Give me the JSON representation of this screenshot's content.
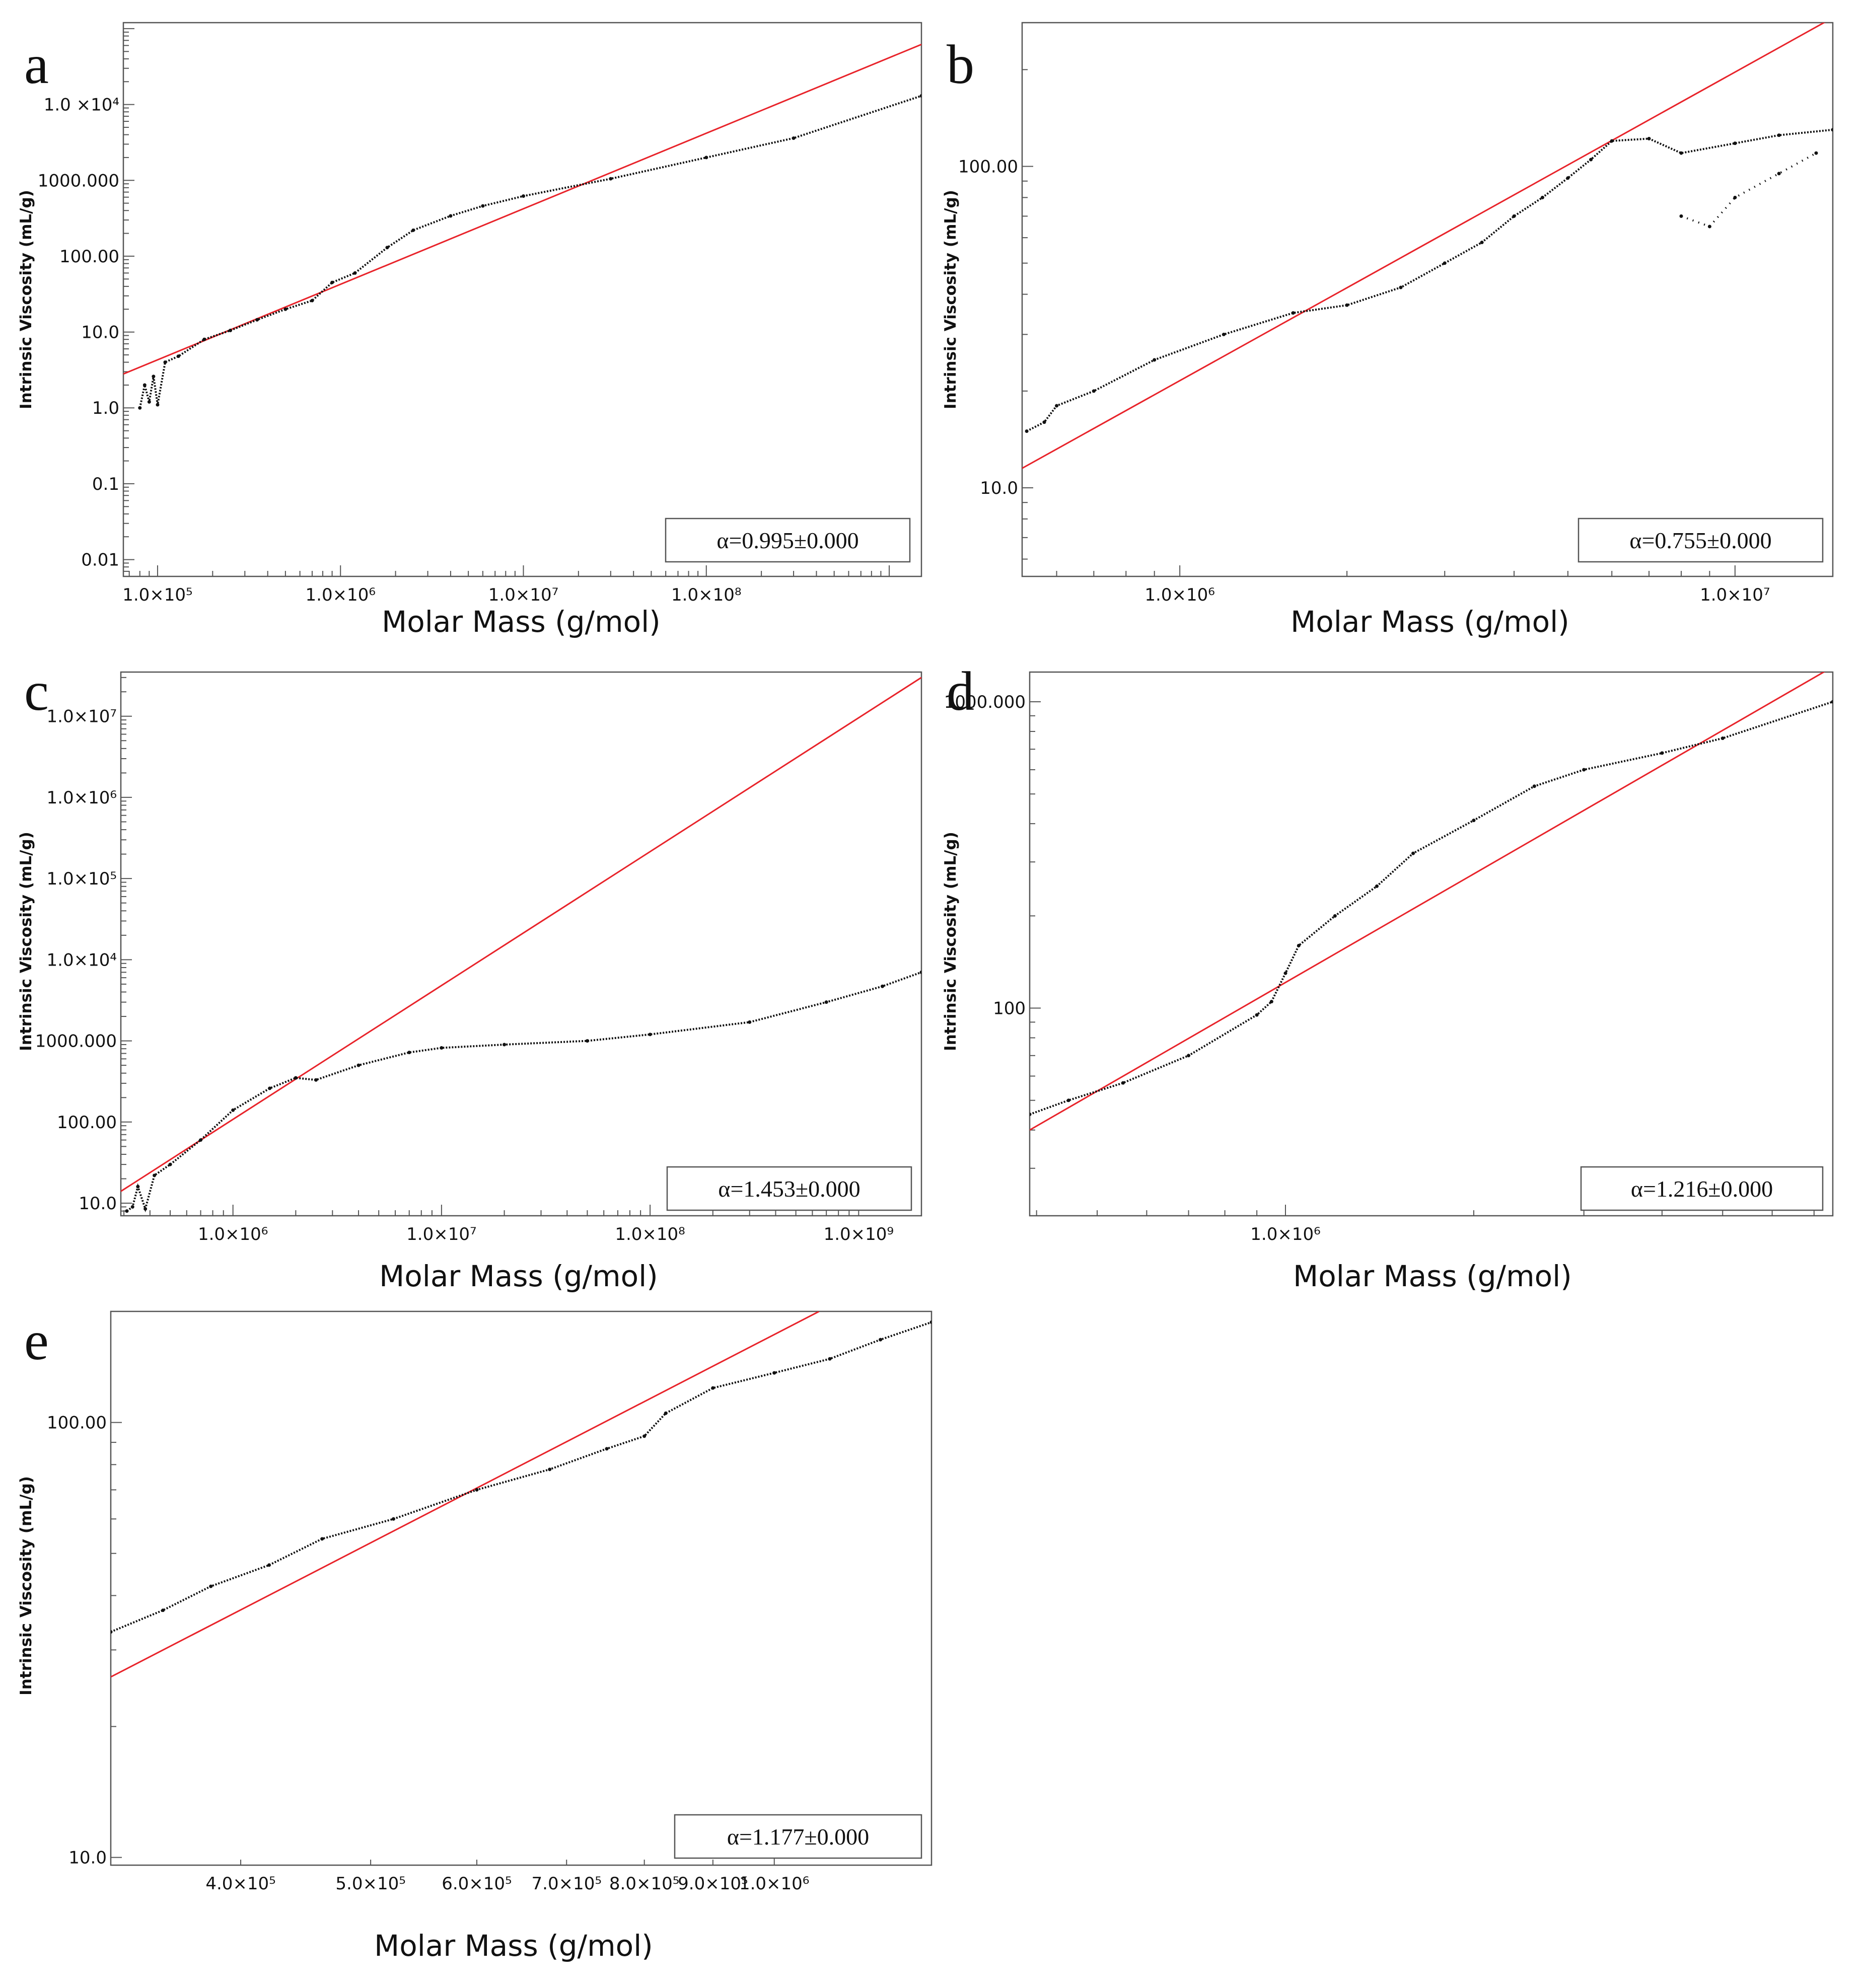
{
  "figure": {
    "xlabel": "Molar Mass (g/mol)",
    "ylabel": "Intrinsic Viscosity (mL/g)",
    "colors": {
      "fit_line": "#e8232a",
      "data": "#111111",
      "frame": "#555555",
      "background": "#ffffff"
    }
  },
  "chart_data": [
    {
      "panel": "a",
      "type": "scatter",
      "title": "",
      "xlabel": "Molar Mass (g/mol)",
      "ylabel": "Intrinsic Viscosity (mL/g)",
      "xscale": "log",
      "yscale": "log",
      "xlim": [
        65000,
        1500000000
      ],
      "ylim": [
        0.006,
        120000
      ],
      "xticks": [
        {
          "value": 100000,
          "label": "1.0×10⁵"
        },
        {
          "value": 1000000,
          "label": "1.0×10⁶"
        },
        {
          "value": 10000000,
          "label": "1.0×10⁷"
        },
        {
          "value": 100000000,
          "label": "1.0×10⁸"
        }
      ],
      "yticks": [
        {
          "value": 0.01,
          "label": "0.01"
        },
        {
          "value": 0.1,
          "label": "0.1"
        },
        {
          "value": 1,
          "label": "1.0"
        },
        {
          "value": 10,
          "label": "10.0"
        },
        {
          "value": 100,
          "label": "100.00"
        },
        {
          "value": 1000,
          "label": "1000.000"
        },
        {
          "value": 10000,
          "label": "1.0 ×10⁴"
        }
      ],
      "alpha_label": "α=0.995±0.000",
      "fit_line": {
        "x": [
          65000,
          1500000000
        ],
        "y": [
          2.8,
          62000
        ]
      },
      "series": [
        {
          "name": "data",
          "x": [
            80000,
            85000,
            90000,
            95000,
            100000,
            110000,
            130000,
            180000,
            250000,
            350000,
            500000,
            700000,
            900000,
            1200000,
            1800000,
            2500000,
            4000000,
            6000000,
            10000000,
            30000000,
            100000000,
            300000000,
            1500000000
          ],
          "y": [
            1.0,
            2.0,
            1.2,
            2.6,
            1.1,
            4.0,
            4.8,
            8.0,
            10.5,
            14.5,
            20,
            26,
            45,
            60,
            130,
            220,
            340,
            460,
            620,
            1050,
            2000,
            3600,
            13000
          ]
        }
      ]
    },
    {
      "panel": "b",
      "type": "scatter",
      "title": "",
      "xlabel": "Molar Mass (g/mol)",
      "ylabel": "Intrinsic Viscosity (mL/g)",
      "xscale": "log",
      "yscale": "log",
      "xlim": [
        520000,
        15000000
      ],
      "ylim": [
        5.3,
        280
      ],
      "xticks": [
        {
          "value": 1000000,
          "label": "1.0×10⁶"
        },
        {
          "value": 10000000,
          "label": "1.0×10⁷"
        }
      ],
      "yticks": [
        {
          "value": 10,
          "label": "10.0"
        },
        {
          "value": 100,
          "label": "100.00"
        }
      ],
      "alpha_label": "α=0.755±0.000",
      "fit_line": {
        "x": [
          520000,
          15000000
        ],
        "y": [
          11.5,
          290
        ]
      },
      "series": [
        {
          "name": "data",
          "x": [
            530000,
            570000,
            600000,
            700000,
            900000,
            1200000,
            1600000,
            2000000,
            2500000,
            3000000,
            3500000,
            4000000,
            4500000,
            5000000,
            5500000,
            6000000,
            7000000,
            8000000,
            10000000,
            12000000,
            15000000
          ],
          "y": [
            15,
            16,
            18,
            20,
            25,
            30,
            35,
            37,
            42,
            50,
            58,
            70,
            80,
            92,
            105,
            120,
            122,
            110,
            118,
            125,
            130
          ]
        },
        {
          "name": "secondary",
          "x": [
            8000000,
            9000000,
            10000000,
            12000000,
            14000000
          ],
          "y": [
            70,
            65,
            80,
            95,
            110
          ]
        }
      ]
    },
    {
      "panel": "c",
      "type": "scatter",
      "title": "",
      "xlabel": "Molar Mass (g/mol)",
      "ylabel": "Intrinsic Viscosity (mL/g)",
      "xscale": "log",
      "yscale": "log",
      "xlim": [
        290000,
        2000000000
      ],
      "ylim": [
        7,
        35000000
      ],
      "xticks": [
        {
          "value": 1000000,
          "label": "1.0×10⁶"
        },
        {
          "value": 10000000,
          "label": "1.0×10⁷"
        },
        {
          "value": 100000000,
          "label": "1.0×10⁸"
        },
        {
          "value": 1000000000,
          "label": "1.0×10⁹"
        }
      ],
      "yticks": [
        {
          "value": 10,
          "label": "10.0"
        },
        {
          "value": 100,
          "label": "100.00"
        },
        {
          "value": 1000,
          "label": "1000.000"
        },
        {
          "value": 10000,
          "label": "1.0×10⁴"
        },
        {
          "value": 100000,
          "label": "1.0×10⁵"
        },
        {
          "value": 1000000,
          "label": "1.0×10⁶"
        },
        {
          "value": 10000000,
          "label": "1.0×10⁷"
        }
      ],
      "alpha_label": "α=1.453±0.000",
      "fit_line": {
        "x": [
          290000,
          2000000000
        ],
        "y": [
          14,
          30000000
        ]
      },
      "series": [
        {
          "name": "data",
          "x": [
            310000,
            330000,
            350000,
            380000,
            420000,
            500000,
            700000,
            1000000,
            1500000,
            2000000,
            2500000,
            4000000,
            7000000,
            10000000,
            20000000,
            50000000,
            100000000,
            300000000,
            700000000,
            1300000000,
            2000000000
          ],
          "y": [
            8,
            9,
            16,
            8.5,
            22,
            30,
            60,
            140,
            260,
            350,
            330,
            500,
            720,
            820,
            900,
            1000,
            1200,
            1700,
            3000,
            4700,
            7000
          ]
        }
      ]
    },
    {
      "panel": "d",
      "type": "scatter",
      "title": "",
      "xlabel": "Molar Mass (g/mol)",
      "ylabel": "Intrinsic Viscosity (mL/g)",
      "xscale": "log",
      "yscale": "log",
      "xlim": [
        390000,
        7500000
      ],
      "ylim": [
        21,
        1250
      ],
      "xticks": [
        {
          "value": 1000000,
          "label": "1.0×10⁶"
        }
      ],
      "yticks": [
        {
          "value": 100,
          "label": "100"
        },
        {
          "value": 1000,
          "label": "1000.000"
        }
      ],
      "alpha_label": "α=1.216±0.000",
      "fit_line": {
        "x": [
          390000,
          7500000
        ],
        "y": [
          40,
          1300
        ]
      },
      "series": [
        {
          "name": "data",
          "x": [
            390000,
            450000,
            550000,
            700000,
            900000,
            950000,
            1000000,
            1050000,
            1200000,
            1400000,
            1600000,
            2000000,
            2500000,
            3000000,
            4000000,
            5000000,
            7500000
          ],
          "y": [
            45,
            50,
            57,
            70,
            95,
            105,
            130,
            160,
            200,
            250,
            320,
            410,
            530,
            600,
            680,
            760,
            1000
          ]
        }
      ]
    },
    {
      "panel": "e",
      "type": "scatter",
      "title": "",
      "xlabel": "Molar Mass (g/mol)",
      "ylabel": "Intrinsic Viscosity (mL/g)",
      "xscale": "log",
      "yscale": "log",
      "xlim": [
        320000,
        1310000
      ],
      "ylim": [
        9.6,
        180
      ],
      "xticks": [
        {
          "value": 400000,
          "label": "4.0×10⁵"
        },
        {
          "value": 500000,
          "label": "5.0×10⁵"
        },
        {
          "value": 600000,
          "label": "6.0×10⁵"
        },
        {
          "value": 700000,
          "label": "7.0×10⁵"
        },
        {
          "value": 800000,
          "label": "8.0×10⁵"
        },
        {
          "value": 900000,
          "label": "9.0×10⁵"
        },
        {
          "value": 1000000,
          "label": "1.0×10⁶"
        }
      ],
      "yticks": [
        {
          "value": 10,
          "label": "10.0"
        },
        {
          "value": 100,
          "label": "100.00"
        }
      ],
      "alpha_label": "α=1.177±0.000",
      "fit_line": {
        "x": [
          320000,
          1080000
        ],
        "y": [
          26,
          180
        ]
      },
      "series": [
        {
          "name": "data",
          "x": [
            320000,
            350000,
            380000,
            420000,
            460000,
            520000,
            600000,
            680000,
            750000,
            800000,
            830000,
            900000,
            1000000,
            1100000,
            1200000,
            1310000
          ],
          "y": [
            33,
            37,
            42,
            47,
            54,
            60,
            70,
            78,
            87,
            93,
            105,
            120,
            130,
            140,
            155,
            170
          ]
        }
      ]
    }
  ]
}
